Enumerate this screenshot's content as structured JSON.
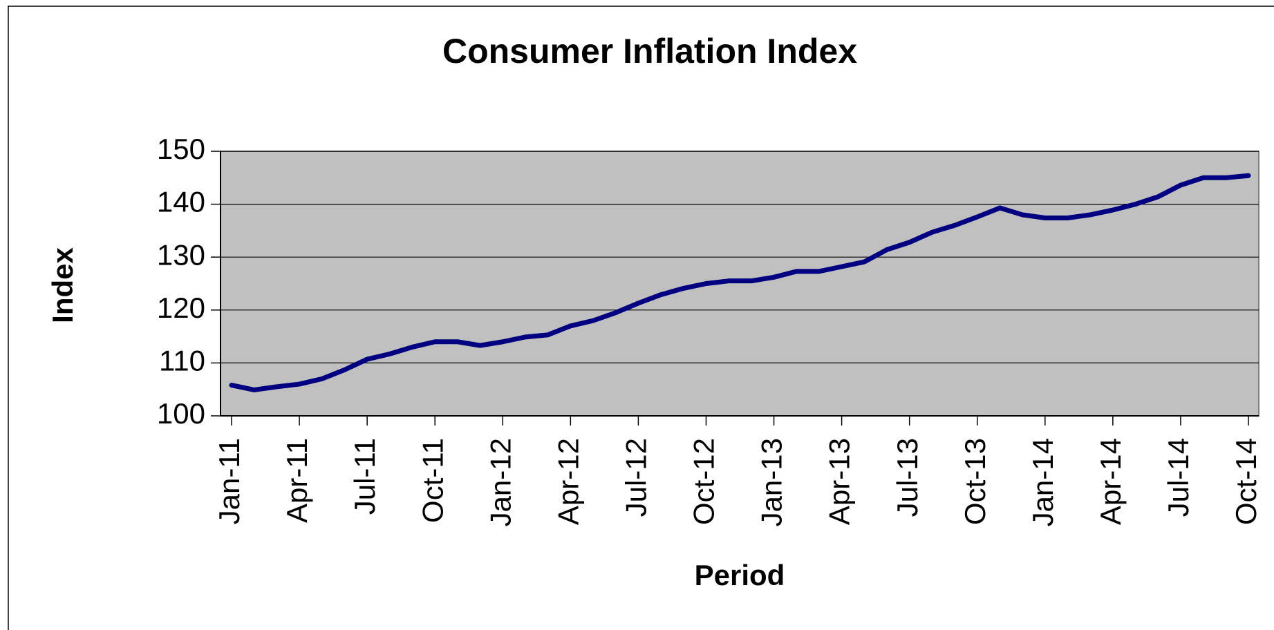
{
  "chart_data": {
    "type": "line",
    "title": "Consumer Inflation Index",
    "x_label": "Period",
    "y_label": "Index",
    "categories": [
      "Jan-11",
      null,
      null,
      "Apr-11",
      null,
      null,
      "Jul-11",
      null,
      null,
      "Oct-11",
      null,
      null,
      "Jan-12",
      null,
      null,
      "Apr-12",
      null,
      null,
      "Jul-12",
      null,
      null,
      "Oct-12",
      null,
      null,
      "Jan-13",
      null,
      null,
      "Apr-13",
      null,
      null,
      "Jul-13",
      null,
      null,
      "Oct-13",
      null,
      null,
      "Jan-14",
      null,
      null,
      "Apr-14",
      null,
      null,
      "Jul-14",
      null,
      null,
      "Oct-14"
    ],
    "series": [
      {
        "name": "Index",
        "color": "#000080",
        "values": [
          105.8,
          104.9,
          105.5,
          106.0,
          107.0,
          108.7,
          110.7,
          111.7,
          113.0,
          114.0,
          114.0,
          113.3,
          114.0,
          114.9,
          115.3,
          117.0,
          118.0,
          119.5,
          121.3,
          122.9,
          124.1,
          125.0,
          125.5,
          125.5,
          126.2,
          127.3,
          127.3,
          128.2,
          129.1,
          131.4,
          132.8,
          134.7,
          136.0,
          137.6,
          139.3,
          138.0,
          137.4,
          137.4,
          138.0,
          138.9,
          140.0,
          141.4,
          143.6,
          145.0,
          145.0,
          145.4
        ]
      }
    ],
    "ylim": [
      100,
      150
    ],
    "yticks": [
      100,
      110,
      120,
      130,
      140,
      150
    ],
    "grid": true,
    "plot_background": "#c0c0c0"
  }
}
